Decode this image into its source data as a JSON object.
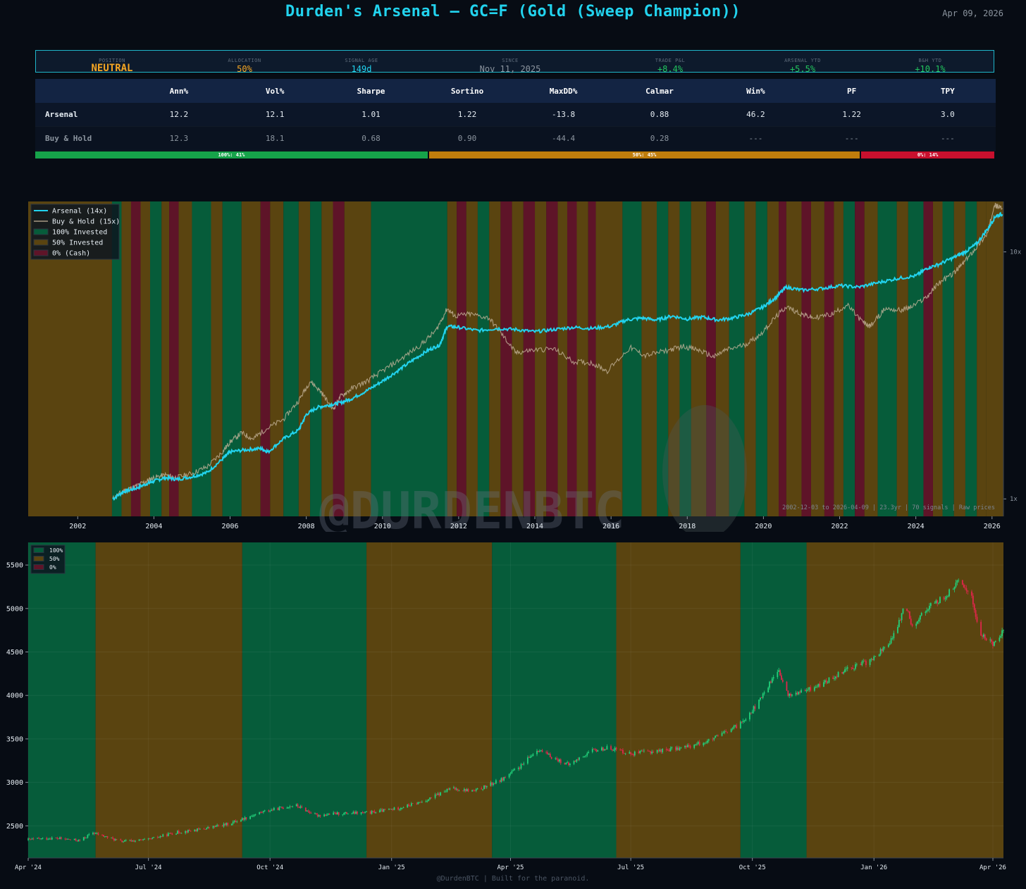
{
  "header": {
    "title": "Durden's Arsenal  —  GC=F (Gold (Sweep Champion))",
    "date": "Apr 09, 2026"
  },
  "status_bar": [
    {
      "label": "POSITION",
      "value": "NEUTRAL",
      "color": "#f5a623",
      "size": "big"
    },
    {
      "label": "ALLOCATION",
      "value": "50%",
      "color": "#f5a623"
    },
    {
      "label": "SIGNAL AGE",
      "value": "149d",
      "color": "#22d3ee"
    },
    {
      "label": "SINCE",
      "value": "Nov 11, 2025",
      "color": "#8b949e"
    },
    {
      "label": "TRADE P&L",
      "value": "+8.4%",
      "color": "#22c55e"
    },
    {
      "label": "ARSENAL YTD",
      "value": "+5.5%",
      "color": "#22c55e"
    },
    {
      "label": "B&H YTD",
      "value": "+10.1%",
      "color": "#22c55e"
    }
  ],
  "metrics_table": {
    "columns": [
      "",
      "Ann%",
      "Vol%",
      "Sharpe",
      "Sortino",
      "MaxDD%",
      "Calmar",
      "Win%",
      "PF",
      "TPY"
    ],
    "rows": [
      {
        "name": "Arsenal",
        "values": [
          "12.2",
          "12.1",
          "1.01",
          "1.22",
          "-13.8",
          "0.88",
          "46.2",
          "1.22",
          "3.0"
        ],
        "highlight": [
          1,
          2,
          3,
          4,
          5
        ]
      },
      {
        "name": "Buy & Hold",
        "values": [
          "12.3",
          "18.1",
          "0.68",
          "0.90",
          "-44.4",
          "0.28",
          "---",
          "---",
          "---"
        ],
        "highlight": []
      }
    ]
  },
  "allocation_bar": [
    {
      "label": "100%: 41%",
      "fraction": 0.41,
      "color": "#16a34a"
    },
    {
      "label": "50%: 45%",
      "fraction": 0.45,
      "color": "#c07d0c"
    },
    {
      "label": "0%: 14%",
      "fraction": 0.14,
      "color": "#c8102e"
    }
  ],
  "colors": {
    "arsenal": "#22d3ee",
    "buy_hold": "#c4b49a",
    "invested_100": "#065c3a",
    "invested_50": "#5a4410",
    "invested_0": "#5e1428",
    "candle_up": "#22d07a",
    "candle_down": "#e0264a"
  },
  "watermark": "@DURDENBTC",
  "footer": "@DurdenBTC  |  Built for the paranoid.",
  "chart_data": [
    {
      "type": "line",
      "scale": "log",
      "ylim": [
        0.85,
        16
      ],
      "xlim": [
        2000.7,
        2026.3
      ],
      "x_ticks": [
        2002,
        2004,
        2006,
        2008,
        2010,
        2012,
        2014,
        2016,
        2018,
        2020,
        2022,
        2024,
        2026
      ],
      "y_ticks": [
        {
          "value": 1,
          "label": "1x"
        },
        {
          "value": 10,
          "label": "10x"
        }
      ],
      "legend": {
        "position": "top-left",
        "entries": [
          "Arsenal (14x)",
          "Buy & Hold (15x)",
          "100% Invested",
          "50% Invested",
          "0% (Cash)"
        ]
      },
      "annotation": "2002-12-03 to 2026-04-09  |  23.3yr  |  70 signals  |  Raw prices",
      "regimes": [
        {
          "start": 2000.7,
          "end": 2002.9,
          "alloc": 50
        },
        {
          "start": 2002.9,
          "end": 2003.15,
          "alloc": 100
        },
        {
          "start": 2003.15,
          "end": 2003.4,
          "alloc": 50
        },
        {
          "start": 2003.4,
          "end": 2003.65,
          "alloc": 0
        },
        {
          "start": 2003.65,
          "end": 2003.9,
          "alloc": 50
        },
        {
          "start": 2003.9,
          "end": 2004.2,
          "alloc": 100
        },
        {
          "start": 2004.2,
          "end": 2004.4,
          "alloc": 50
        },
        {
          "start": 2004.4,
          "end": 2004.65,
          "alloc": 0
        },
        {
          "start": 2004.65,
          "end": 2005.0,
          "alloc": 50
        },
        {
          "start": 2005.0,
          "end": 2005.5,
          "alloc": 100
        },
        {
          "start": 2005.5,
          "end": 2005.8,
          "alloc": 50
        },
        {
          "start": 2005.8,
          "end": 2006.3,
          "alloc": 100
        },
        {
          "start": 2006.3,
          "end": 2006.8,
          "alloc": 50
        },
        {
          "start": 2006.8,
          "end": 2007.05,
          "alloc": 0
        },
        {
          "start": 2007.05,
          "end": 2007.4,
          "alloc": 50
        },
        {
          "start": 2007.4,
          "end": 2007.8,
          "alloc": 100
        },
        {
          "start": 2007.8,
          "end": 2008.1,
          "alloc": 50
        },
        {
          "start": 2008.1,
          "end": 2008.4,
          "alloc": 100
        },
        {
          "start": 2008.4,
          "end": 2008.7,
          "alloc": 50
        },
        {
          "start": 2008.7,
          "end": 2009.0,
          "alloc": 0
        },
        {
          "start": 2009.0,
          "end": 2009.7,
          "alloc": 50
        },
        {
          "start": 2009.7,
          "end": 2011.7,
          "alloc": 100
        },
        {
          "start": 2011.7,
          "end": 2011.95,
          "alloc": 50
        },
        {
          "start": 2011.95,
          "end": 2012.2,
          "alloc": 0
        },
        {
          "start": 2012.2,
          "end": 2012.5,
          "alloc": 50
        },
        {
          "start": 2012.5,
          "end": 2012.8,
          "alloc": 100
        },
        {
          "start": 2012.8,
          "end": 2013.1,
          "alloc": 50
        },
        {
          "start": 2013.1,
          "end": 2013.4,
          "alloc": 0
        },
        {
          "start": 2013.4,
          "end": 2013.7,
          "alloc": 50
        },
        {
          "start": 2013.7,
          "end": 2014.0,
          "alloc": 0
        },
        {
          "start": 2014.0,
          "end": 2014.3,
          "alloc": 50
        },
        {
          "start": 2014.3,
          "end": 2014.6,
          "alloc": 0
        },
        {
          "start": 2014.6,
          "end": 2014.85,
          "alloc": 50
        },
        {
          "start": 2014.85,
          "end": 2015.1,
          "alloc": 0
        },
        {
          "start": 2015.1,
          "end": 2015.4,
          "alloc": 50
        },
        {
          "start": 2015.4,
          "end": 2015.6,
          "alloc": 0
        },
        {
          "start": 2015.6,
          "end": 2016.3,
          "alloc": 50
        },
        {
          "start": 2016.3,
          "end": 2016.8,
          "alloc": 100
        },
        {
          "start": 2016.8,
          "end": 2017.2,
          "alloc": 50
        },
        {
          "start": 2017.2,
          "end": 2017.5,
          "alloc": 100
        },
        {
          "start": 2017.5,
          "end": 2017.8,
          "alloc": 50
        },
        {
          "start": 2017.8,
          "end": 2018.1,
          "alloc": 100
        },
        {
          "start": 2018.1,
          "end": 2018.5,
          "alloc": 50
        },
        {
          "start": 2018.5,
          "end": 2018.75,
          "alloc": 0
        },
        {
          "start": 2018.75,
          "end": 2019.1,
          "alloc": 50
        },
        {
          "start": 2019.1,
          "end": 2019.5,
          "alloc": 100
        },
        {
          "start": 2019.5,
          "end": 2019.8,
          "alloc": 50
        },
        {
          "start": 2019.8,
          "end": 2020.1,
          "alloc": 100
        },
        {
          "start": 2020.1,
          "end": 2020.4,
          "alloc": 50
        },
        {
          "start": 2020.4,
          "end": 2020.6,
          "alloc": 0
        },
        {
          "start": 2020.6,
          "end": 2021.0,
          "alloc": 50
        },
        {
          "start": 2021.0,
          "end": 2021.25,
          "alloc": 0
        },
        {
          "start": 2021.25,
          "end": 2021.6,
          "alloc": 50
        },
        {
          "start": 2021.6,
          "end": 2021.85,
          "alloc": 0
        },
        {
          "start": 2021.85,
          "end": 2022.1,
          "alloc": 50
        },
        {
          "start": 2022.1,
          "end": 2022.4,
          "alloc": 100
        },
        {
          "start": 2022.4,
          "end": 2022.65,
          "alloc": 0
        },
        {
          "start": 2022.65,
          "end": 2023.0,
          "alloc": 50
        },
        {
          "start": 2023.0,
          "end": 2023.5,
          "alloc": 100
        },
        {
          "start": 2023.5,
          "end": 2023.8,
          "alloc": 50
        },
        {
          "start": 2023.8,
          "end": 2024.2,
          "alloc": 100
        },
        {
          "start": 2024.2,
          "end": 2024.45,
          "alloc": 0
        },
        {
          "start": 2024.45,
          "end": 2024.7,
          "alloc": 50
        },
        {
          "start": 2024.7,
          "end": 2025.0,
          "alloc": 100
        },
        {
          "start": 2025.0,
          "end": 2025.3,
          "alloc": 50
        },
        {
          "start": 2025.3,
          "end": 2025.6,
          "alloc": 100
        },
        {
          "start": 2025.6,
          "end": 2025.85,
          "alloc": 50
        },
        {
          "start": 2025.85,
          "end": 2026.3,
          "alloc": 50
        }
      ],
      "series": [
        {
          "name": "Arsenal (14x)",
          "x": [
            2002.92,
            2003.2,
            2003.5,
            2003.8,
            2004.0,
            2004.3,
            2004.6,
            2005.0,
            2005.4,
            2005.8,
            2006.0,
            2006.4,
            2006.8,
            2007.0,
            2007.4,
            2007.8,
            2008.0,
            2008.3,
            2008.6,
            2008.9,
            2009.2,
            2009.6,
            2010.0,
            2010.4,
            2010.8,
            2011.2,
            2011.5,
            2011.7,
            2012.0,
            2012.5,
            2013.0,
            2013.5,
            2014.0,
            2014.5,
            2015.0,
            2015.5,
            2016.0,
            2016.4,
            2016.8,
            2017.2,
            2017.6,
            2018.0,
            2018.4,
            2018.8,
            2019.2,
            2019.6,
            2020.0,
            2020.3,
            2020.6,
            2021.0,
            2021.5,
            2022.0,
            2022.5,
            2023.0,
            2023.5,
            2024.0,
            2024.3,
            2024.6,
            2025.0,
            2025.3,
            2025.6,
            2025.9,
            2026.1,
            2026.27
          ],
          "values": [
            1.0,
            1.07,
            1.1,
            1.15,
            1.18,
            1.22,
            1.2,
            1.23,
            1.28,
            1.45,
            1.55,
            1.58,
            1.6,
            1.55,
            1.75,
            1.9,
            2.2,
            2.35,
            2.4,
            2.45,
            2.55,
            2.75,
            3.0,
            3.3,
            3.65,
            4.0,
            4.2,
            5.0,
            4.95,
            4.8,
            4.9,
            4.85,
            4.75,
            4.85,
            4.95,
            4.9,
            5.0,
            5.3,
            5.4,
            5.3,
            5.5,
            5.35,
            5.45,
            5.3,
            5.4,
            5.6,
            6.0,
            6.5,
            7.2,
            7.0,
            7.1,
            7.3,
            7.2,
            7.5,
            7.8,
            8.0,
            8.6,
            8.9,
            9.5,
            10.0,
            10.8,
            12.5,
            14.0,
            14.2
          ]
        },
        {
          "name": "Buy & Hold (15x)",
          "x": [
            2002.92,
            2003.2,
            2003.5,
            2003.8,
            2004.0,
            2004.3,
            2004.6,
            2005.0,
            2005.4,
            2005.8,
            2006.0,
            2006.3,
            2006.6,
            2006.9,
            2007.4,
            2007.8,
            2008.1,
            2008.4,
            2008.7,
            2008.9,
            2009.2,
            2009.6,
            2010.0,
            2010.5,
            2011.0,
            2011.4,
            2011.7,
            2011.9,
            2012.3,
            2012.8,
            2013.2,
            2013.5,
            2013.9,
            2014.5,
            2015.0,
            2015.5,
            2015.9,
            2016.5,
            2016.9,
            2017.5,
            2017.9,
            2018.3,
            2018.7,
            2019.0,
            2019.5,
            2019.9,
            2020.3,
            2020.6,
            2021.0,
            2021.3,
            2021.8,
            2022.2,
            2022.6,
            2022.8,
            2023.2,
            2023.6,
            2023.9,
            2024.3,
            2024.6,
            2025.0,
            2025.3,
            2025.6,
            2025.9,
            2026.05,
            2026.27
          ],
          "values": [
            1.0,
            1.08,
            1.12,
            1.18,
            1.22,
            1.25,
            1.22,
            1.27,
            1.35,
            1.55,
            1.7,
            1.85,
            1.75,
            1.9,
            2.1,
            2.5,
            3.0,
            2.7,
            2.3,
            2.6,
            2.8,
            3.0,
            3.3,
            3.7,
            4.2,
            4.8,
            5.9,
            5.5,
            5.6,
            5.4,
            4.5,
            3.9,
            4.0,
            4.05,
            3.6,
            3.55,
            3.3,
            4.1,
            3.8,
            4.0,
            4.15,
            4.0,
            3.75,
            4.0,
            4.2,
            4.6,
            5.4,
            6.0,
            5.6,
            5.4,
            5.6,
            6.1,
            5.2,
            5.0,
            5.9,
            5.8,
            6.0,
            6.6,
            7.5,
            8.2,
            9.2,
            10.5,
            12.0,
            15.5,
            15.0
          ]
        }
      ]
    },
    {
      "type": "candlestick",
      "ylim": [
        2130,
        5760
      ],
      "xlim": [
        "2024-04-01",
        "2026-04-09"
      ],
      "y_ticks": [
        2500,
        3000,
        3500,
        4000,
        4500,
        5000,
        5500
      ],
      "x_ticks": [
        "Apr '24",
        "Jul '24",
        "Oct '24",
        "Jan '25",
        "Apr '25",
        "Jul '25",
        "Oct '25",
        "Jan '26",
        "Apr '26"
      ],
      "legend": {
        "position": "top-left",
        "entries": [
          "100%",
          "50%",
          "0%"
        ]
      },
      "regimes": [
        {
          "start": "2024-04-01",
          "end": "2024-05-22",
          "alloc": 100
        },
        {
          "start": "2024-05-22",
          "end": "2024-09-10",
          "alloc": 50
        },
        {
          "start": "2024-09-10",
          "end": "2024-12-13",
          "alloc": 100
        },
        {
          "start": "2024-12-13",
          "end": "2025-03-18",
          "alloc": 50
        },
        {
          "start": "2025-03-18",
          "end": "2025-06-20",
          "alloc": 100
        },
        {
          "start": "2025-06-20",
          "end": "2025-09-22",
          "alloc": 50
        },
        {
          "start": "2025-09-22",
          "end": "2025-11-11",
          "alloc": 100
        },
        {
          "start": "2025-11-11",
          "end": "2026-04-09",
          "alloc": 50
        }
      ],
      "price_path": {
        "dates": [
          "2024-04-01",
          "2024-04-20",
          "2024-05-10",
          "2024-05-20",
          "2024-06-10",
          "2024-07-01",
          "2024-07-20",
          "2024-08-10",
          "2024-08-30",
          "2024-09-25",
          "2024-10-20",
          "2024-11-05",
          "2024-11-20",
          "2024-12-15",
          "2025-01-05",
          "2025-01-25",
          "2025-02-15",
          "2025-03-05",
          "2025-03-25",
          "2025-04-10",
          "2025-04-21",
          "2025-05-01",
          "2025-05-15",
          "2025-06-01",
          "2025-06-15",
          "2025-07-01",
          "2025-07-20",
          "2025-08-10",
          "2025-08-30",
          "2025-09-20",
          "2025-10-05",
          "2025-10-20",
          "2025-10-28",
          "2025-11-10",
          "2025-11-25",
          "2025-12-10",
          "2025-12-30",
          "2026-01-15",
          "2026-01-25",
          "2026-01-30",
          "2026-02-10",
          "2026-02-25",
          "2026-03-05",
          "2026-03-15",
          "2026-03-22",
          "2026-04-01",
          "2026-04-09"
        ],
        "close": [
          2340,
          2360,
          2330,
          2420,
          2320,
          2340,
          2420,
          2460,
          2520,
          2660,
          2740,
          2620,
          2640,
          2650,
          2700,
          2780,
          2930,
          2900,
          3030,
          3200,
          3380,
          3300,
          3200,
          3360,
          3400,
          3330,
          3360,
          3400,
          3480,
          3650,
          3900,
          4300,
          4000,
          4050,
          4150,
          4300,
          4400,
          4650,
          5050,
          4800,
          5000,
          5150,
          5300,
          5200,
          4700,
          4600,
          4750
        ]
      }
    }
  ]
}
